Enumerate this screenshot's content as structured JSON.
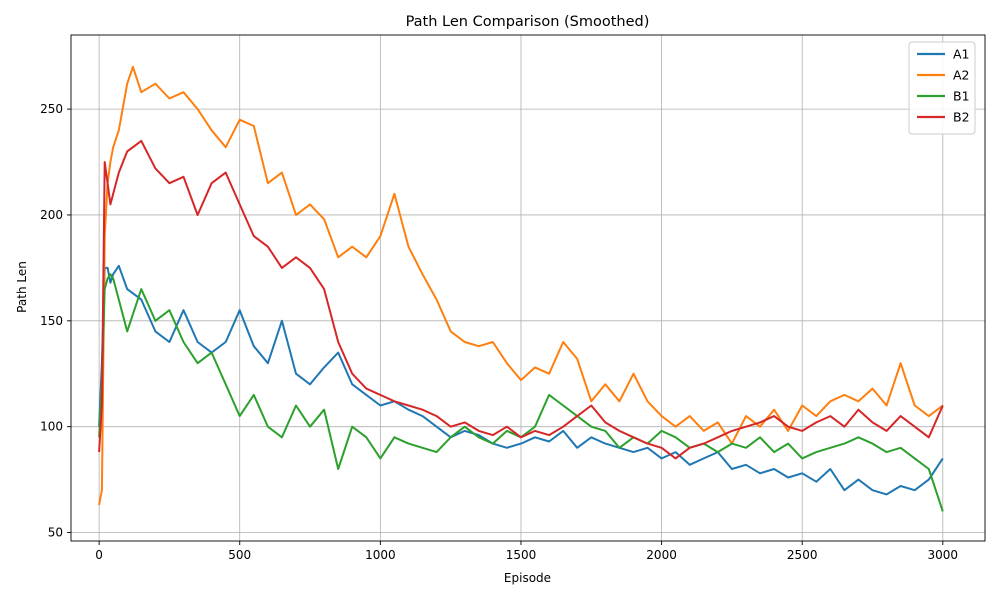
{
  "chart_data": {
    "type": "line",
    "title": "Path Len Comparison (Smoothed)",
    "xlabel": "Episode",
    "ylabel": "Path Len",
    "xlim": [
      -100,
      3150
    ],
    "ylim": [
      46,
      285
    ],
    "xticks": [
      0,
      500,
      1000,
      1500,
      2000,
      2500,
      3000
    ],
    "yticks": [
      50,
      100,
      150,
      200,
      250
    ],
    "grid": true,
    "legend_position": "top-right",
    "series": [
      {
        "name": "A1",
        "color": "#1f77b4",
        "x": [
          0,
          10,
          20,
          30,
          40,
          50,
          70,
          100,
          150,
          200,
          250,
          300,
          350,
          400,
          450,
          500,
          550,
          600,
          650,
          700,
          750,
          800,
          850,
          900,
          950,
          1000,
          1050,
          1100,
          1150,
          1200,
          1250,
          1300,
          1350,
          1400,
          1450,
          1500,
          1550,
          1600,
          1650,
          1700,
          1750,
          1800,
          1850,
          1900,
          1950,
          2000,
          2050,
          2100,
          2150,
          2200,
          2250,
          2300,
          2350,
          2400,
          2450,
          2500,
          2550,
          2600,
          2650,
          2700,
          2750,
          2800,
          2850,
          2900,
          2950,
          3000
        ],
        "y": [
          100,
          130,
          175,
          175,
          168,
          172,
          176,
          165,
          160,
          145,
          140,
          155,
          140,
          135,
          140,
          155,
          138,
          130,
          150,
          125,
          120,
          128,
          135,
          120,
          115,
          110,
          112,
          108,
          105,
          100,
          95,
          98,
          96,
          92,
          90,
          92,
          95,
          93,
          98,
          90,
          95,
          92,
          90,
          88,
          90,
          85,
          88,
          82,
          85,
          88,
          80,
          82,
          78,
          80,
          76,
          78,
          74,
          80,
          70,
          75,
          70,
          68,
          72,
          70,
          75,
          85
        ]
      },
      {
        "name": "A2",
        "color": "#ff7f0e",
        "x": [
          0,
          10,
          20,
          30,
          40,
          50,
          70,
          100,
          120,
          150,
          200,
          250,
          300,
          350,
          400,
          450,
          500,
          550,
          600,
          650,
          700,
          750,
          800,
          850,
          900,
          950,
          1000,
          1050,
          1100,
          1150,
          1200,
          1250,
          1300,
          1350,
          1400,
          1450,
          1500,
          1550,
          1600,
          1650,
          1700,
          1750,
          1800,
          1850,
          1900,
          1950,
          2000,
          2050,
          2100,
          2150,
          2200,
          2250,
          2300,
          2350,
          2400,
          2450,
          2500,
          2550,
          2600,
          2650,
          2700,
          2750,
          2800,
          2850,
          2900,
          2950,
          3000
        ],
        "y": [
          63,
          70,
          190,
          215,
          225,
          232,
          240,
          262,
          270,
          258,
          262,
          255,
          258,
          250,
          240,
          232,
          245,
          242,
          215,
          220,
          200,
          205,
          198,
          180,
          185,
          180,
          190,
          210,
          185,
          172,
          160,
          145,
          140,
          138,
          140,
          130,
          122,
          128,
          125,
          140,
          132,
          112,
          120,
          112,
          125,
          112,
          105,
          100,
          105,
          98,
          102,
          92,
          105,
          100,
          108,
          98,
          110,
          105,
          112,
          115,
          112,
          118,
          110,
          130,
          110,
          105,
          110
        ]
      },
      {
        "name": "B1",
        "color": "#2ca02c",
        "x": [
          0,
          10,
          20,
          30,
          40,
          50,
          70,
          100,
          150,
          200,
          250,
          300,
          350,
          400,
          450,
          500,
          550,
          600,
          650,
          700,
          750,
          800,
          850,
          900,
          950,
          1000,
          1050,
          1100,
          1150,
          1200,
          1250,
          1300,
          1350,
          1400,
          1450,
          1500,
          1550,
          1600,
          1650,
          1700,
          1750,
          1800,
          1850,
          1900,
          1950,
          2000,
          2050,
          2100,
          2150,
          2200,
          2250,
          2300,
          2350,
          2400,
          2450,
          2500,
          2550,
          2600,
          2650,
          2700,
          2750,
          2800,
          2850,
          2900,
          2950,
          3000
        ],
        "y": [
          95,
          120,
          165,
          170,
          172,
          170,
          160,
          145,
          165,
          150,
          155,
          140,
          130,
          135,
          120,
          105,
          115,
          100,
          95,
          110,
          100,
          108,
          80,
          100,
          95,
          85,
          95,
          92,
          90,
          88,
          95,
          100,
          95,
          92,
          98,
          95,
          100,
          115,
          110,
          105,
          100,
          98,
          90,
          95,
          92,
          98,
          95,
          90,
          92,
          88,
          92,
          90,
          95,
          88,
          92,
          85,
          88,
          90,
          92,
          95,
          92,
          88,
          90,
          85,
          80,
          60
        ]
      },
      {
        "name": "B2",
        "color": "#d62728",
        "x": [
          0,
          10,
          20,
          30,
          40,
          50,
          70,
          100,
          150,
          200,
          250,
          300,
          350,
          400,
          450,
          500,
          550,
          600,
          650,
          700,
          750,
          800,
          850,
          900,
          950,
          1000,
          1050,
          1100,
          1150,
          1200,
          1250,
          1300,
          1350,
          1400,
          1450,
          1500,
          1550,
          1600,
          1650,
          1700,
          1750,
          1800,
          1850,
          1900,
          1950,
          2000,
          2050,
          2100,
          2150,
          2200,
          2250,
          2300,
          2350,
          2400,
          2450,
          2500,
          2550,
          2600,
          2650,
          2700,
          2750,
          2800,
          2850,
          2900,
          2950,
          3000
        ],
        "y": [
          88,
          110,
          225,
          215,
          205,
          210,
          220,
          230,
          235,
          222,
          215,
          218,
          200,
          215,
          220,
          205,
          190,
          185,
          175,
          180,
          175,
          165,
          140,
          125,
          118,
          115,
          112,
          110,
          108,
          105,
          100,
          102,
          98,
          96,
          100,
          95,
          98,
          96,
          100,
          105,
          110,
          102,
          98,
          95,
          92,
          90,
          85,
          90,
          92,
          95,
          98,
          100,
          102,
          105,
          100,
          98,
          102,
          105,
          100,
          108,
          102,
          98,
          105,
          100,
          95,
          110
        ]
      }
    ]
  }
}
